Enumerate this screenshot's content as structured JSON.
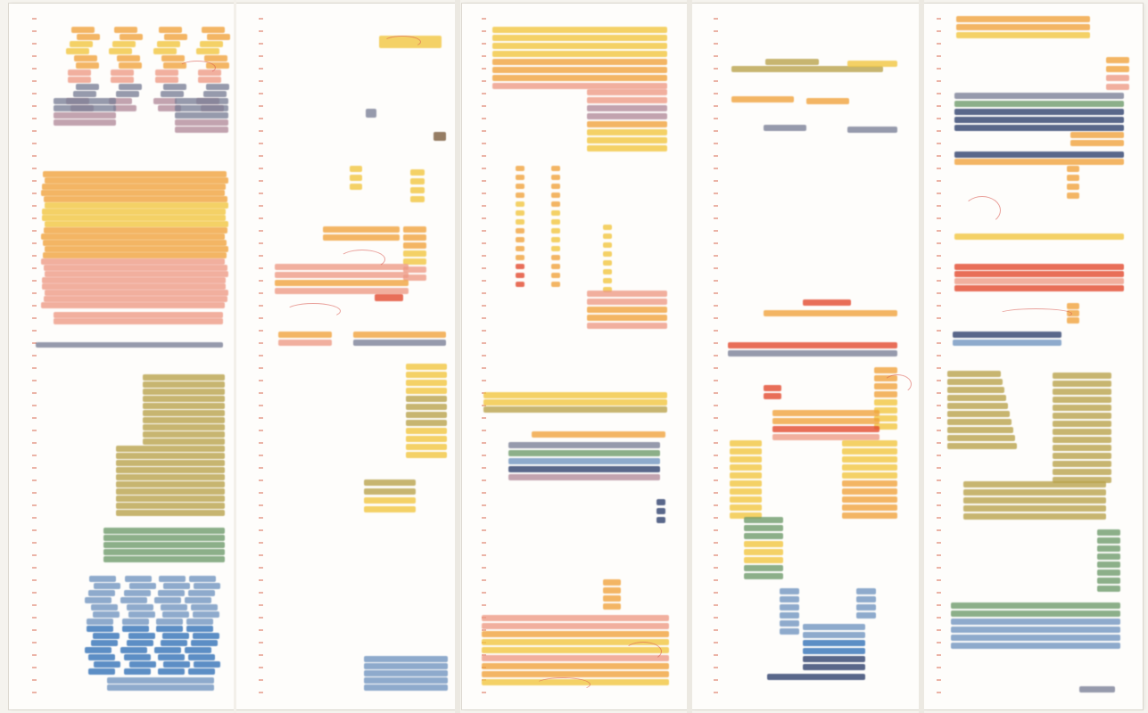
{
  "image": {
    "kind": "photograph of a five-panel drawing with hand-coloured horizontal strokes on gridded paper",
    "panels": 5,
    "palette": {
      "paper": "#fefdfb",
      "tick_marks": "#e49a8a",
      "annotation_red": "#d9554c",
      "yellow": "#f2c53d",
      "orange": "#f0a23a",
      "salmon": "#ee9a85",
      "red": "#e2462b",
      "olive": "#b8a24a",
      "green": "#6d9a6a",
      "steel_blue": "#6f94bf",
      "blue": "#2f6fb6",
      "navy": "#2b3d6b",
      "slate": "#7a7f96",
      "mauve": "#b28a9a"
    },
    "icon": "mixed-media-artwork-icon"
  }
}
